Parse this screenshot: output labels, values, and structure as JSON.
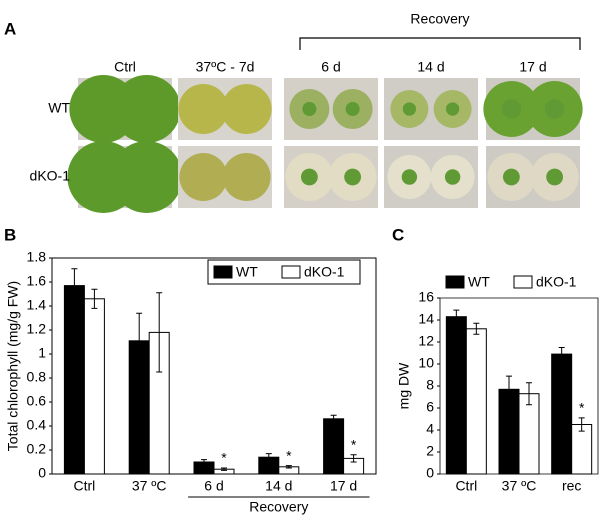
{
  "panel_a": {
    "label": "A",
    "recovery": "Recovery",
    "columns": [
      "Ctrl",
      "37ºC - 7d",
      "6 d",
      "14 d",
      "17 d"
    ],
    "rows": [
      "WT",
      "dKO-1"
    ]
  },
  "chart_data": [
    {
      "type": "bar",
      "panel": "B",
      "ylabel": "Total chlorophyll (mg/g FW)",
      "categories": [
        "Ctrl",
        "37 ºC",
        "6 d",
        "14 d",
        "17 d"
      ],
      "series": [
        {
          "name": "WT",
          "color": "#000000",
          "values": [
            1.57,
            1.11,
            0.1,
            0.14,
            0.46
          ],
          "errors": [
            0.14,
            0.23,
            0.02,
            0.03,
            0.03
          ]
        },
        {
          "name": "dKO-1",
          "color": "#ffffff",
          "values": [
            1.46,
            1.18,
            0.04,
            0.06,
            0.13
          ],
          "errors": [
            0.08,
            0.33,
            0.01,
            0.01,
            0.03
          ]
        }
      ],
      "annotations": [
        {
          "category": "6 d",
          "series": "dKO-1",
          "text": "*"
        },
        {
          "category": "14 d",
          "series": "dKO-1",
          "text": "*"
        },
        {
          "category": "17 d",
          "series": "dKO-1",
          "text": "*"
        }
      ],
      "group_label": {
        "text": "Recovery",
        "from": "6 d",
        "to": "17 d"
      },
      "ylim": [
        0,
        1.8
      ],
      "yticks": [
        0,
        0.2,
        0.4,
        0.6,
        0.8,
        1,
        1.2,
        1.4,
        1.6,
        1.8
      ],
      "legend": "top-right"
    },
    {
      "type": "bar",
      "panel": "C",
      "ylabel": "mg DW",
      "categories": [
        "Ctrl",
        "37 ºC",
        "rec"
      ],
      "series": [
        {
          "name": "WT",
          "color": "#000000",
          "values": [
            14.3,
            7.7,
            10.9
          ],
          "errors": [
            0.6,
            1.2,
            0.6
          ]
        },
        {
          "name": "dKO-1",
          "color": "#ffffff",
          "values": [
            13.2,
            7.3,
            4.5
          ],
          "errors": [
            0.5,
            1.0,
            0.6
          ]
        }
      ],
      "annotations": [
        {
          "category": "rec",
          "series": "dKO-1",
          "text": "*"
        }
      ],
      "ylim": [
        0,
        16
      ],
      "yticks": [
        0,
        2,
        4,
        6,
        8,
        10,
        12,
        14,
        16
      ],
      "legend": "top"
    }
  ]
}
